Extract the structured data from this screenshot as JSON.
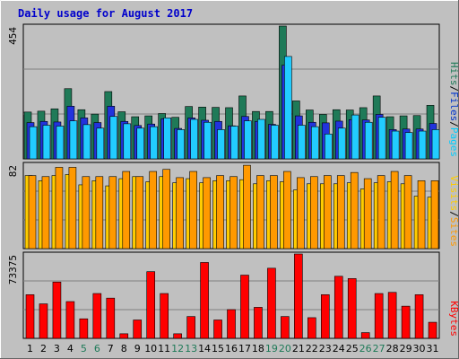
{
  "chart_data": {
    "type": "bar",
    "title": "Daily usage for August 2017",
    "categories": [
      "1",
      "2",
      "3",
      "4",
      "5",
      "6",
      "7",
      "8",
      "9",
      "10",
      "11",
      "12",
      "13",
      "14",
      "15",
      "16",
      "17",
      "18",
      "19",
      "20",
      "21",
      "22",
      "23",
      "24",
      "25",
      "26",
      "27",
      "28",
      "29",
      "30",
      "31"
    ],
    "weekend_days": [
      "5",
      "6",
      "12",
      "13",
      "19",
      "20",
      "26",
      "27"
    ],
    "panels": [
      {
        "id": "hits-files-pages",
        "ymax": 454,
        "ymax_label": "454",
        "ylim": [
          0,
          454
        ],
        "legend": [
          "Pages",
          "/",
          "Files",
          "/",
          "Hits"
        ],
        "series": [
          {
            "name": "Hits",
            "color": "#1f7a58",
            "values": [
              160,
              163,
              171,
              240,
              168,
              153,
              230,
              161,
              144,
              147,
              155,
              142,
              179,
              177,
              176,
              175,
              215,
              162,
              162,
              454,
              198,
              167,
              152,
              168,
              167,
              175,
              215,
              144,
              147,
              148,
              183
            ]
          },
          {
            "name": "Files",
            "color": "#2233dd",
            "values": [
              124,
              128,
              126,
              180,
              140,
              124,
              180,
              128,
              114,
              119,
              137,
              104,
              140,
              132,
              128,
              113,
              145,
              128,
              118,
              320,
              147,
              125,
              123,
              129,
              134,
              133,
              152,
              100,
              102,
              102,
              121
            ]
          },
          {
            "name": "Pages",
            "color": "#22ccff",
            "values": [
              110,
              115,
              112,
              130,
              117,
              105,
              145,
              120,
              105,
              110,
              140,
              100,
              135,
              125,
              100,
              112,
              130,
              135,
              115,
              350,
              115,
              110,
              85,
              105,
              150,
              125,
              142,
              95,
              90,
              95,
              100
            ]
          }
        ]
      },
      {
        "id": "visits-sites",
        "ymax": 82,
        "ymax_label": "82",
        "ylim": [
          0,
          82
        ],
        "legend": [
          "Sites",
          "/",
          "Visits"
        ],
        "series": [
          {
            "name": "Visits",
            "color": "#ffcc00",
            "values": [
              71,
              66,
              71,
              72,
              62,
              66,
              61,
              68,
              70,
              65,
              70,
              64,
              68,
              64,
              66,
              66,
              67,
              63,
              66,
              65,
              57,
              63,
              63,
              63,
              64,
              58,
              64,
              65,
              63,
              51,
              50
            ]
          },
          {
            "name": "Sites",
            "color": "#ff9900",
            "values": [
              71,
              70,
              79,
              79,
              70,
              70,
              70,
              75,
              70,
              75,
              77,
              69,
              75,
              69,
              71,
              70,
              81,
              71,
              71,
              75,
              69,
              70,
              71,
              71,
              74,
              68,
              71,
              75,
              71,
              66,
              66
            ]
          }
        ]
      },
      {
        "id": "kbytes",
        "ymax": 73375,
        "ymax_label": "73375",
        "ylim": [
          0,
          73375
        ],
        "legend": [
          "KBytes"
        ],
        "series": [
          {
            "name": "KBytes",
            "color": "#ff0000",
            "values": [
              38000,
              30000,
              49000,
              32000,
              17000,
              39000,
              35000,
              4000,
              16000,
              58000,
              39000,
              4000,
              19000,
              66000,
              16000,
              25000,
              55000,
              27000,
              61000,
              19000,
              73375,
              18000,
              38000,
              54000,
              52000,
              5000,
              39000,
              40000,
              28000,
              38000,
              14000
            ]
          }
        ]
      }
    ]
  }
}
